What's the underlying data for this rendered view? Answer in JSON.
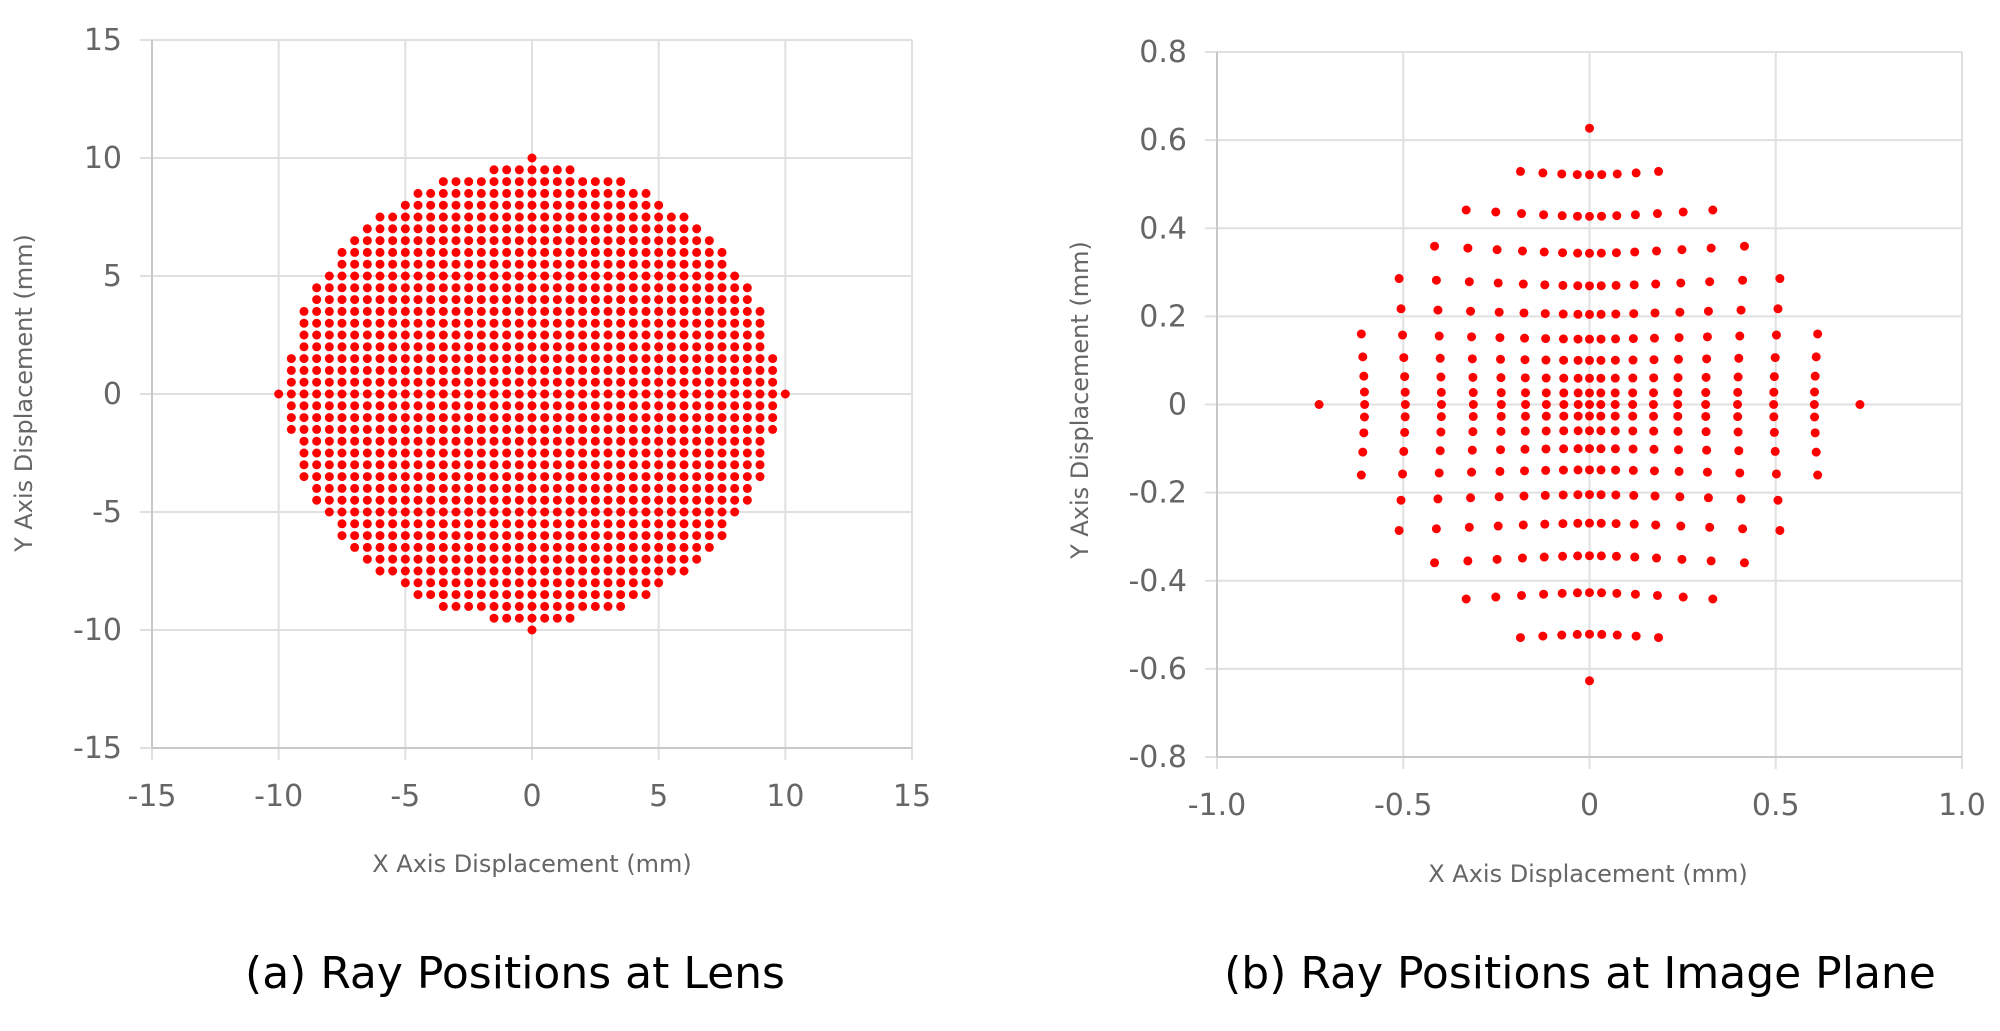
{
  "colors": {
    "point": "#ff0000",
    "grid": "#e0e0e0",
    "tick_text": "#666666"
  },
  "chart_data": [
    {
      "type": "scatter",
      "caption": "(a) Ray Positions at Lens",
      "xlabel": "X Axis Displacement (mm)",
      "ylabel": "Y Axis Displacement (mm)",
      "xlim": [
        -15,
        15
      ],
      "ylim": [
        -15,
        15
      ],
      "x_ticks": [
        -15,
        -10,
        -5,
        0,
        5,
        10,
        15
      ],
      "y_ticks": [
        -15,
        -10,
        -5,
        0,
        5,
        10,
        15
      ],
      "x_tick_labels": [
        "-15",
        "-10",
        "-5",
        "0",
        "5",
        "10",
        "15"
      ],
      "y_tick_labels": [
        "-15",
        "-10",
        "-5",
        "0",
        "5",
        "10",
        "15"
      ],
      "grid": true,
      "series": [
        {
          "pattern": "square-grid-in-circle",
          "radius": 9.7,
          "spacing": 0.5,
          "extra_points": [
            [
              -10,
              0
            ],
            [
              10,
              0
            ],
            [
              0,
              10
            ],
            [
              0,
              -10
            ]
          ]
        }
      ]
    },
    {
      "type": "scatter",
      "caption": "(b) Ray Positions at Image Plane",
      "xlabel": "X Axis Displacement (mm)",
      "ylabel": "Y Axis Displacement (mm)",
      "xlim": [
        -1.0,
        1.0
      ],
      "ylim": [
        -0.8,
        0.8
      ],
      "x_ticks": [
        -1.0,
        -0.5,
        0,
        0.5,
        1.0
      ],
      "y_ticks": [
        -0.8,
        -0.6,
        -0.4,
        -0.2,
        0,
        0.2,
        0.4,
        0.6,
        0.8
      ],
      "x_tick_labels": [
        "-1.0",
        "-0.5",
        "0",
        "0.5",
        "1.0"
      ],
      "y_tick_labels": [
        "-0.8",
        "-0.6",
        "-0.4",
        "-0.2",
        "0",
        "0.2",
        "0.4",
        "0.6",
        "0.8"
      ],
      "grid": true,
      "series": [
        {
          "pattern": "pincushion-distorted-grid",
          "source_radius": 10,
          "source_spacing": 1,
          "scale_x": 0.066,
          "scale_y": 0.057,
          "distortion": 0.1
        }
      ]
    }
  ]
}
